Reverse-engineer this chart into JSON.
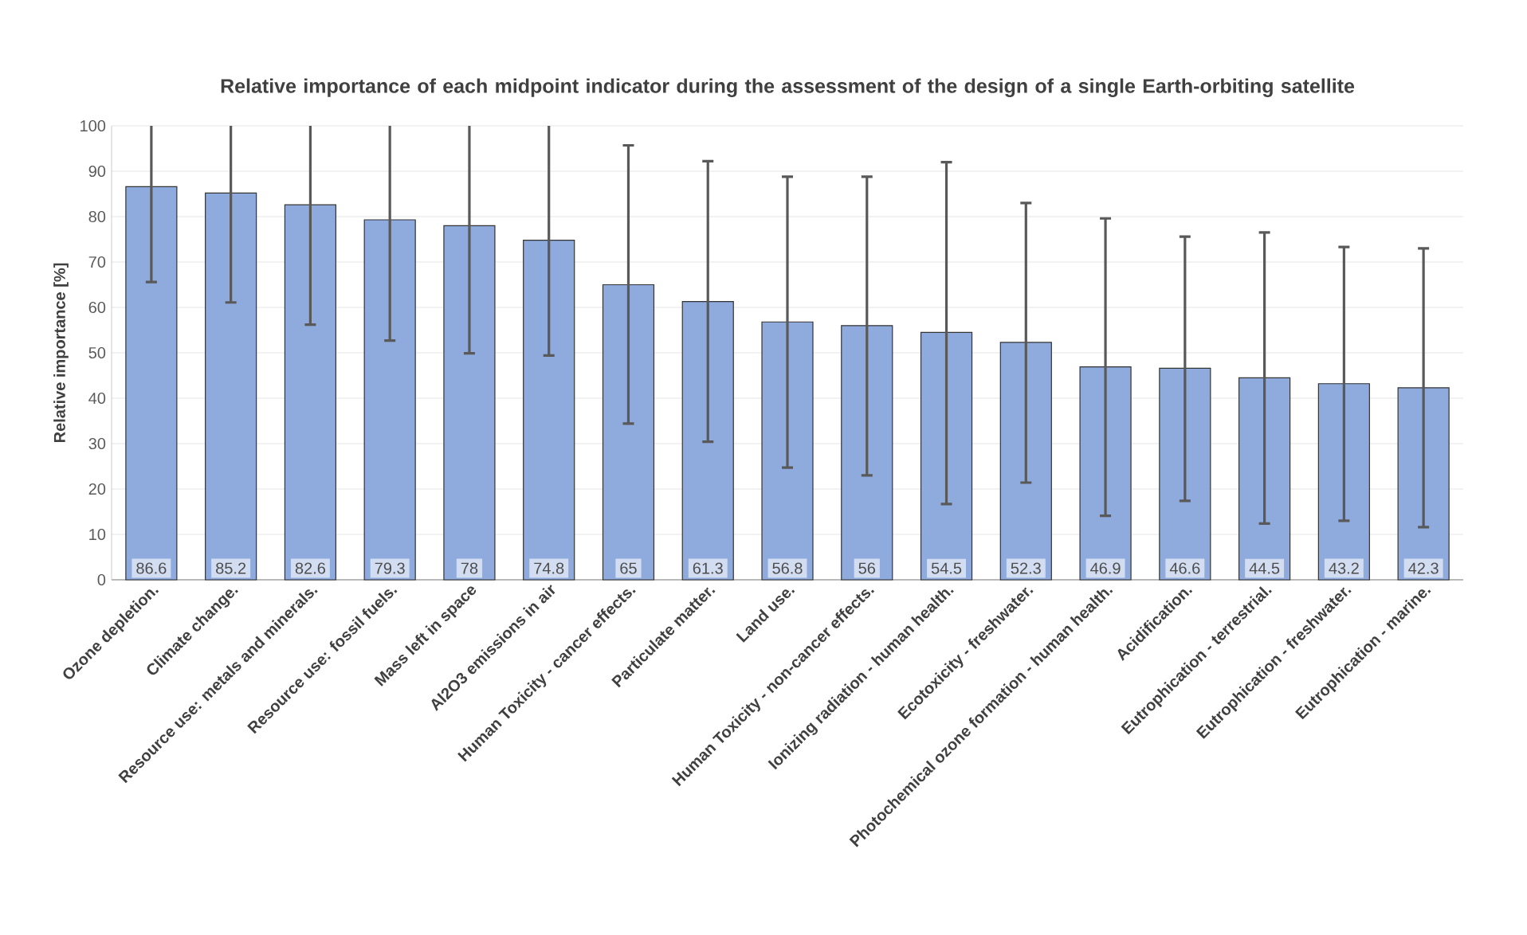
{
  "chart_data": {
    "type": "bar",
    "title": "Relative importance of each midpoint indicator during the assessment of the design of a single Earth-orbiting satellite",
    "ylabel": "Relative importance [%]",
    "categories": [
      "Ozone depletion.",
      "Climate change.",
      "Resource use: metals and minerals.",
      "Resource use: fossil fuels.",
      "Mass left in space",
      "Al2O3 emissions in air",
      "Human Toxicity - cancer effects.",
      "Particulate matter.",
      "Land use.",
      "Human Toxicity - non-cancer effects.",
      "Ionizing radiation - human health.",
      "Ecotoxicity - freshwater.",
      "Photochemical ozone formation - human health.",
      "Acidification.",
      "Eutrophication - terrestrial.",
      "Eutrophication - freshwater.",
      "Eutrophication - marine."
    ],
    "values": [
      86.6,
      85.2,
      82.6,
      79.3,
      78,
      74.8,
      65,
      61.3,
      56.8,
      56,
      54.5,
      52.3,
      46.9,
      46.6,
      44.5,
      43.2,
      42.3
    ],
    "errors": [
      [
        65.6,
        100
      ],
      [
        61.1,
        100
      ],
      [
        56.2,
        100
      ],
      [
        52.7,
        100
      ],
      [
        49.9,
        100
      ],
      [
        49.4,
        100
      ],
      [
        34.4,
        95.7
      ],
      [
        30.4,
        92.2
      ],
      [
        24.7,
        88.8
      ],
      [
        23.0,
        88.8
      ],
      [
        16.7,
        92.0
      ],
      [
        21.4,
        83.0
      ],
      [
        14.1,
        79.6
      ],
      [
        17.4,
        75.6
      ],
      [
        12.4,
        76.5
      ],
      [
        13.0,
        73.3
      ],
      [
        11.6,
        73.0
      ]
    ],
    "color": "#8faadc",
    "ylim": [
      0,
      100
    ],
    "yticks": [
      0,
      10,
      20,
      30,
      40,
      50,
      60,
      70,
      80,
      90,
      100
    ],
    "grid": "y",
    "data_labels": true
  }
}
